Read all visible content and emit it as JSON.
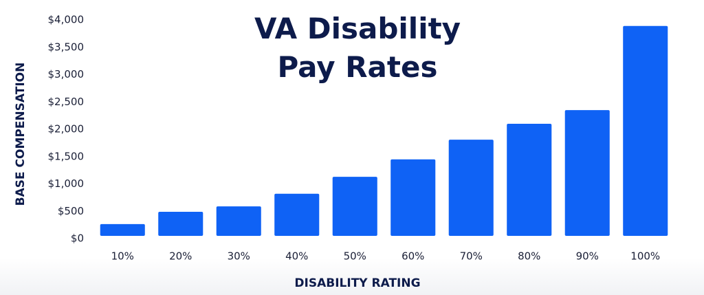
{
  "chart_data": {
    "type": "bar",
    "title": "VA Disability Pay Rates",
    "x_label": "DISABILITY RATING",
    "y_label": "BASE COMPENSATION",
    "categories": [
      "10%",
      "20%",
      "30%",
      "40%",
      "50%",
      "60%",
      "70%",
      "80%",
      "90%",
      "100%"
    ],
    "values": [
      265,
      490,
      590,
      820,
      1130,
      1450,
      1810,
      2100,
      2350,
      3890
    ],
    "color": "#0f62f5",
    "ylim": [
      0,
      4000
    ],
    "yticks": [
      {
        "value": 0,
        "label": "$0"
      },
      {
        "value": 500,
        "label": "$500"
      },
      {
        "value": 1000,
        "label": "$1,000"
      },
      {
        "value": 1500,
        "label": "$1,500"
      },
      {
        "value": 2000,
        "label": "$2,000"
      },
      {
        "value": 2500,
        "label": "$2,500"
      },
      {
        "value": 3000,
        "label": "$3,000"
      },
      {
        "value": 3500,
        "label": "$3,500"
      },
      {
        "value": 4000,
        "label": "$4,000"
      }
    ],
    "grid": false
  }
}
